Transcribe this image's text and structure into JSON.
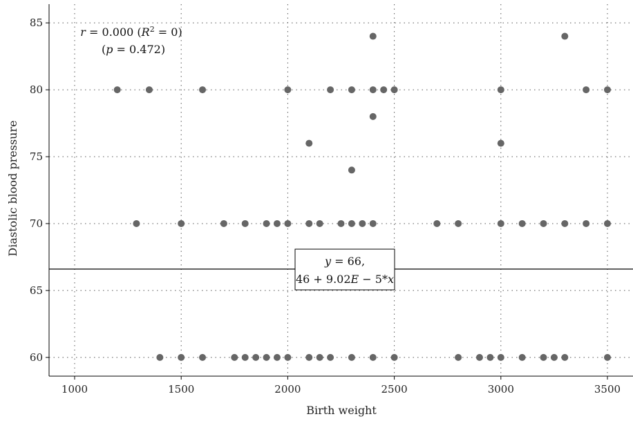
{
  "chart_data": {
    "type": "scatter",
    "xlabel": "Birth weight",
    "ylabel": "Diastolic blood pressure",
    "xlim": [
      880,
      3620
    ],
    "ylim": [
      58.6,
      86.4
    ],
    "xticks": [
      1000,
      1500,
      2000,
      2500,
      3000,
      3500
    ],
    "yticks": [
      60,
      65,
      70,
      75,
      80,
      85
    ],
    "grid": true,
    "stats": {
      "line1": {
        "prefix": "r",
        "text_a": " = 0.000 (",
        "r2": "R",
        "sup": "2",
        "text_b": " = 0)"
      },
      "line2": {
        "open": "(",
        "p": "p",
        "text": " = 0.472)"
      }
    },
    "regression": {
      "y_value": 66.6,
      "label_line1_italic": "y",
      "label_line1": " = 66,",
      "label_line2_a": "46 + 9.02",
      "label_line2_e": "E",
      "label_line2_b": " − 5*",
      "label_line2_x": "x"
    },
    "point_color": "#666666",
    "points": [
      [
        1200,
        80
      ],
      [
        1350,
        80
      ],
      [
        1600,
        80
      ],
      [
        2000,
        80
      ],
      [
        2200,
        80
      ],
      [
        2300,
        80
      ],
      [
        2400,
        80
      ],
      [
        2450,
        80
      ],
      [
        2500,
        80
      ],
      [
        3000,
        80
      ],
      [
        3400,
        80
      ],
      [
        3500,
        80
      ],
      [
        2400,
        84
      ],
      [
        3300,
        84
      ],
      [
        2400,
        78
      ],
      [
        2100,
        76
      ],
      [
        3000,
        76
      ],
      [
        2300,
        74
      ],
      [
        1290,
        70
      ],
      [
        1500,
        70
      ],
      [
        1700,
        70
      ],
      [
        1800,
        70
      ],
      [
        1900,
        70
      ],
      [
        1950,
        70
      ],
      [
        2000,
        70
      ],
      [
        2100,
        70
      ],
      [
        2150,
        70
      ],
      [
        2250,
        70
      ],
      [
        2300,
        70
      ],
      [
        2350,
        70
      ],
      [
        2400,
        70
      ],
      [
        2700,
        70
      ],
      [
        2800,
        70
      ],
      [
        3000,
        70
      ],
      [
        3100,
        70
      ],
      [
        3200,
        70
      ],
      [
        3300,
        70
      ],
      [
        3400,
        70
      ],
      [
        3500,
        70
      ],
      [
        1400,
        60
      ],
      [
        1500,
        60
      ],
      [
        1600,
        60
      ],
      [
        1750,
        60
      ],
      [
        1800,
        60
      ],
      [
        1850,
        60
      ],
      [
        1900,
        60
      ],
      [
        1950,
        60
      ],
      [
        2000,
        60
      ],
      [
        2100,
        60
      ],
      [
        2150,
        60
      ],
      [
        2200,
        60
      ],
      [
        2300,
        60
      ],
      [
        2400,
        60
      ],
      [
        2500,
        60
      ],
      [
        2800,
        60
      ],
      [
        2900,
        60
      ],
      [
        2950,
        60
      ],
      [
        3000,
        60
      ],
      [
        3100,
        60
      ],
      [
        3200,
        60
      ],
      [
        3250,
        60
      ],
      [
        3300,
        60
      ],
      [
        3500,
        60
      ]
    ]
  }
}
